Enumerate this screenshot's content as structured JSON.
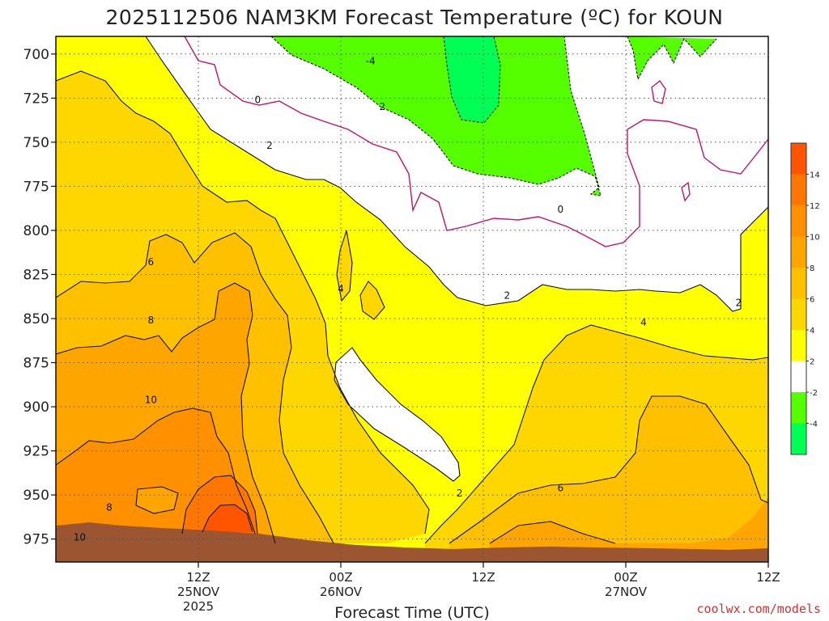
{
  "chart_data": {
    "type": "heatmap",
    "title": "2025112506 NAM3KM Forecast Temperature (ºC) for KOUN",
    "xlabel": "Forecast Time (UTC)",
    "ylabel": "",
    "yticks": [
      "700",
      "725",
      "750",
      "775",
      "800",
      "825",
      "850",
      "875",
      "900",
      "925",
      "950",
      "975"
    ],
    "ylim": [
      988,
      690
    ],
    "xticks": [
      {
        "time": "12Z",
        "day": "25NOV",
        "year": "2025",
        "hour": 12
      },
      {
        "time": "00Z",
        "day": "26NOV",
        "year": "",
        "hour": 24
      },
      {
        "time": "12Z",
        "day": "",
        "year": "",
        "hour": 36
      },
      {
        "time": "00Z",
        "day": "27NOV",
        "year": "",
        "hour": 48
      },
      {
        "time": "12Z",
        "day": "",
        "year": "",
        "hour": 60
      }
    ],
    "xlim_hours_since_init": [
      0,
      60
    ],
    "grid": true,
    "colorbar": {
      "position": "right",
      "tick_labels": [
        "14",
        "12",
        "10",
        "8",
        "6",
        "4",
        "2",
        "-2",
        "-4"
      ],
      "bands": [
        {
          "from": 14,
          "to": 16,
          "color": "#ff5500"
        },
        {
          "from": 12,
          "to": 14,
          "color": "#ff7700"
        },
        {
          "from": 10,
          "to": 12,
          "color": "#ff9000"
        },
        {
          "from": 8,
          "to": 10,
          "color": "#ffa500"
        },
        {
          "from": 6,
          "to": 8,
          "color": "#ffc000"
        },
        {
          "from": 4,
          "to": 6,
          "color": "#ffd700"
        },
        {
          "from": 2,
          "to": 4,
          "color": "#ffff00"
        },
        {
          "from": -2,
          "to": 2,
          "color": "#ffffff"
        },
        {
          "from": -4,
          "to": -2,
          "color": "#55ff00"
        },
        {
          "from": -6,
          "to": -4,
          "color": "#00ff55"
        }
      ]
    },
    "contour_labels": [
      {
        "text": "-4",
        "hour": 26.5,
        "pressure": 704
      },
      {
        "text": "0",
        "hour": 17.0,
        "pressure": 726
      },
      {
        "text": "2",
        "hour": 27.5,
        "pressure": 730
      },
      {
        "text": "2",
        "hour": 18.0,
        "pressure": 752
      },
      {
        "text": "0",
        "hour": 42.5,
        "pressure": 788
      },
      {
        "text": "6",
        "hour": 8.0,
        "pressure": 818
      },
      {
        "text": "4",
        "hour": 24.0,
        "pressure": 833
      },
      {
        "text": "2",
        "hour": 38.0,
        "pressure": 837
      },
      {
        "text": "2",
        "hour": 57.5,
        "pressure": 841
      },
      {
        "text": "8",
        "hour": 8.0,
        "pressure": 851
      },
      {
        "text": "4",
        "hour": 49.5,
        "pressure": 852
      },
      {
        "text": "10",
        "hour": 8.0,
        "pressure": 896
      },
      {
        "text": "6",
        "hour": 42.5,
        "pressure": 946
      },
      {
        "text": "2",
        "hour": 34.0,
        "pressure": 949
      },
      {
        "text": "8",
        "hour": 4.5,
        "pressure": 957
      },
      {
        "text": "10",
        "hour": 2.0,
        "pressure": 974
      }
    ],
    "regions": [
      {
        "value_range": [
          2,
          4
        ],
        "color": "#ffff00"
      },
      {
        "value_range": [
          4,
          6
        ],
        "color": "#ffd700"
      },
      {
        "value_range": [
          6,
          8
        ],
        "color": "#ffc000"
      },
      {
        "value_range": [
          8,
          10
        ],
        "color": "#ffa500"
      },
      {
        "value_range": [
          10,
          12
        ],
        "color": "#ff9000"
      },
      {
        "value_range": [
          12,
          14
        ],
        "color": "#ff7700"
      },
      {
        "value_range": [
          14,
          16
        ],
        "color": "#ff5500"
      },
      {
        "value_range": [
          -2,
          2
        ],
        "color": "#ffffff"
      },
      {
        "value_range": [
          -4,
          -2
        ],
        "color": "#55ff00"
      },
      {
        "value_range": [
          -6,
          -4
        ],
        "color": "#00ff55"
      }
    ],
    "terrain_color": "#9b5530"
  },
  "credit": "coolwx.com/models"
}
